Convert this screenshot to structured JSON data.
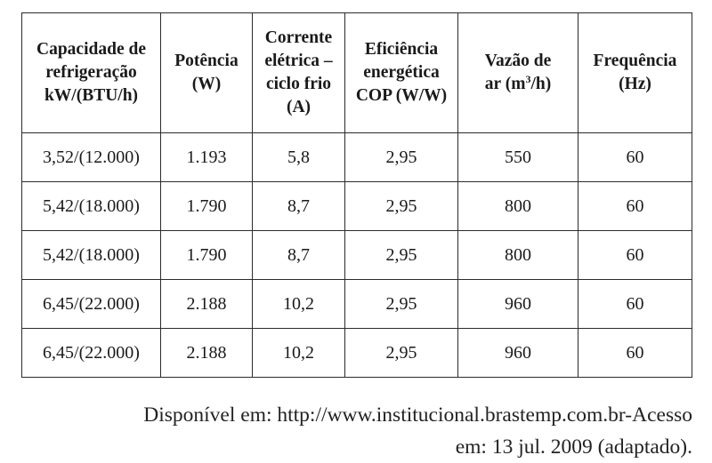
{
  "table": {
    "headers": [
      {
        "lines": [
          "Capacidade de",
          "refrigeração",
          "kW/(BTU/h)"
        ]
      },
      {
        "lines": [
          "Potência",
          "(W)"
        ]
      },
      {
        "lines": [
          "Corrente",
          "elétrica –",
          "ciclo frio",
          "(A)"
        ]
      },
      {
        "lines": [
          "Eficiência",
          "energética",
          "COP (W/W)"
        ]
      },
      {
        "lines": [
          "Vazão de",
          "ar (m3/h)"
        ],
        "pre": "ar (m",
        "sup": "3",
        "post": "/h)"
      },
      {
        "lines": [
          "Frequência",
          "(Hz)"
        ]
      }
    ],
    "rows": [
      [
        "3,52/(12.000)",
        "1.193",
        "5,8",
        "2,95",
        "550",
        "60"
      ],
      [
        "5,42/(18.000)",
        "1.790",
        "8,7",
        "2,95",
        "800",
        "60"
      ],
      [
        "5,42/(18.000)",
        "1.790",
        "8,7",
        "2,95",
        "800",
        "60"
      ],
      [
        "6,45/(22.000)",
        "2.188",
        "10,2",
        "2,95",
        "960",
        "60"
      ],
      [
        "6,45/(22.000)",
        "2.188",
        "10,2",
        "2,95",
        "960",
        "60"
      ]
    ]
  },
  "source": {
    "line1": "Disponível em: http://www.institucional.brastemp.com.br-Acesso",
    "line2": "em: 13 jul. 2009 (adaptado)."
  }
}
